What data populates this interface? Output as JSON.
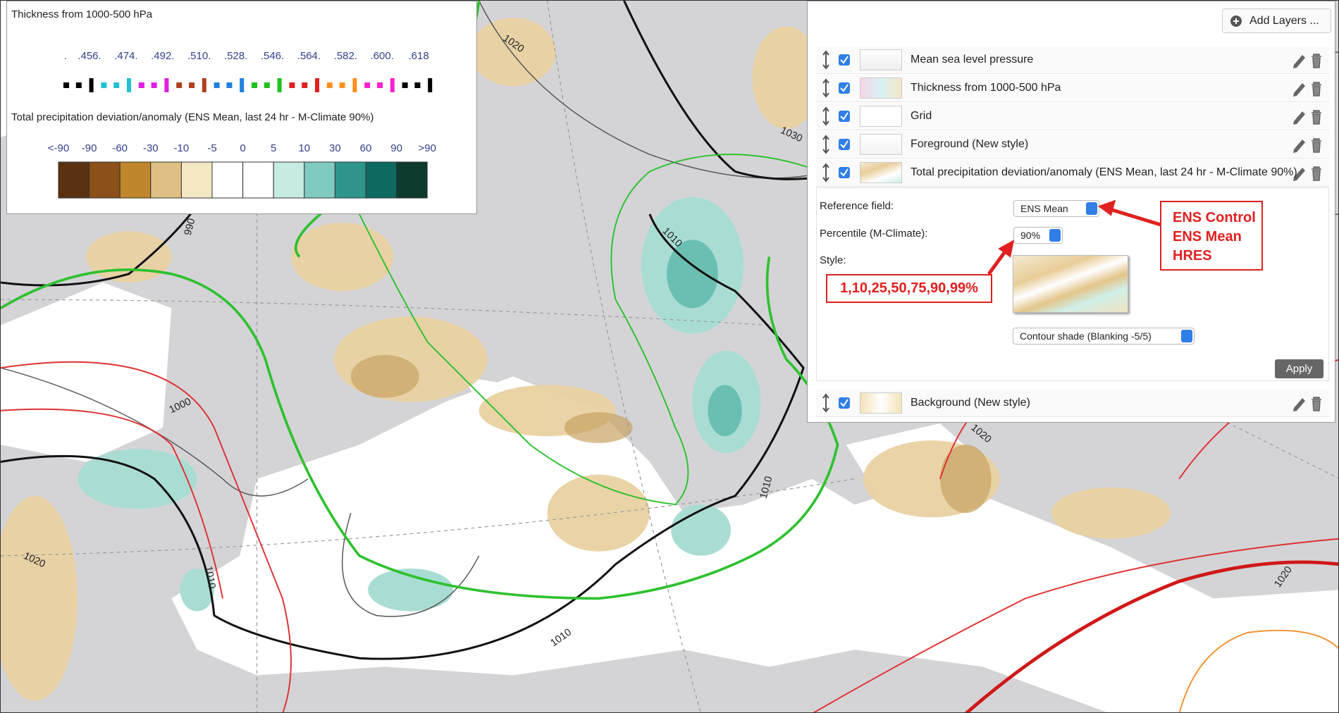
{
  "legend": {
    "thickness_title": "Thickness from 1000-500 hPa",
    "thickness_labels": [
      ".",
      ".456.",
      ".474.",
      ".492.",
      ".510.",
      ".528.",
      ".546.",
      ".564.",
      ".582.",
      ".600.",
      ".618"
    ],
    "thickness_colors": [
      "#000000",
      "#22c0d0",
      "#e020e0",
      "#b04020",
      "#2080e0",
      "#20c020",
      "#e02020",
      "#ff9020",
      "#ff20d0",
      "#000000"
    ],
    "precip_title": "Total precipitation deviation/anomaly (ENS Mean, last 24 hr - M-Climate 90%)",
    "precip_labels": [
      "<-90",
      "-90",
      "-60",
      "-30",
      "-10",
      "-5",
      "0",
      "5",
      "10",
      "30",
      "60",
      "90",
      ">90"
    ],
    "precip_colors": [
      "#5a3210",
      "#8b5118",
      "#c0862e",
      "#dfc084",
      "#f5e6c4",
      "#ffffff",
      "#ffffff",
      "#c6ebe3",
      "#80cbbf",
      "#2f958c",
      "#0e6a60",
      "#0e3b2f"
    ]
  },
  "panel": {
    "add_layers": "Add Layers ...",
    "layers": [
      "Mean sea level pressure",
      "Thickness from 1000-500 hPa",
      "Grid",
      "Foreground (New style)",
      "Total precipitation deviation/anomaly (ENS Mean, last 24 hr - M-Climate 90%)"
    ],
    "background_layer": "Background (New style)",
    "reference_label": "Reference field:",
    "reference_value": "ENS Mean",
    "percentile_label": "Percentile (M-Climate):",
    "percentile_value": "90%",
    "style_label": "Style:",
    "style_value": "Contour shade (Blanking -5/5)",
    "apply": "Apply"
  },
  "annotations": {
    "reference_options": [
      "ENS Control",
      "ENS Mean",
      "HRES"
    ],
    "percentiles": "1,10,25,50,75,90,99%"
  },
  "map": {
    "contour_labels": [
      "1020",
      "1030",
      "1010",
      "1000",
      "990",
      "1010",
      "1020",
      "1010",
      "1020",
      "1010",
      "1020"
    ]
  }
}
